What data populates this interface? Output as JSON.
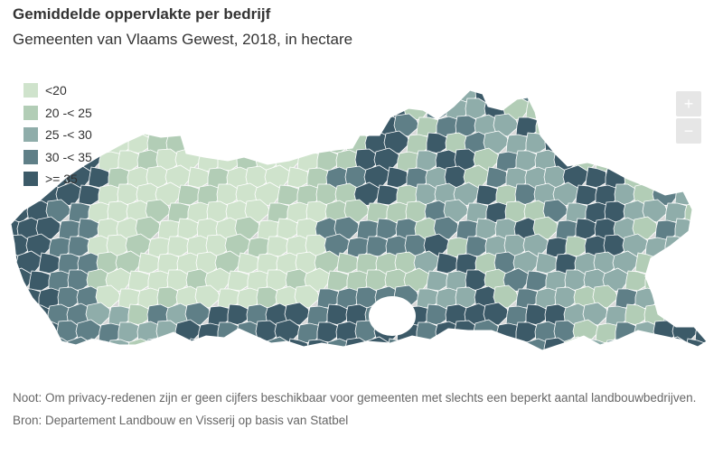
{
  "header": {
    "title": "Gemiddelde oppervlakte per bedrijf",
    "subtitle": "Gemeenten van Vlaams Gewest, 2018, in hectare"
  },
  "legend": {
    "items": [
      {
        "label": "<20",
        "color": "#cfe3cc"
      },
      {
        "label": "20 -< 25",
        "color": "#b2cdb6"
      },
      {
        "label": "25 -< 30",
        "color": "#8fadaa"
      },
      {
        "label": "30 -< 35",
        "color": "#5f7f87"
      },
      {
        "label": ">= 35",
        "color": "#3c5a68"
      }
    ]
  },
  "zoom": {
    "in_label": "+",
    "out_label": "−"
  },
  "map": {
    "colors": {
      "c1": "#cfe3cc",
      "c2": "#b2cdb6",
      "c3": "#8fadaa",
      "c4": "#5f7f87",
      "c5": "#3c5a68",
      "nodata": "#d9d9d9",
      "border": "#ffffff"
    }
  },
  "footer": {
    "note": "Noot: Om privacy-redenen zijn er geen cijfers beschikbaar voor gemeenten met slechts een beperkt aantal landbouwbedrijven.",
    "source": "Bron: Departement Landbouw en Visserij op basis van Statbel"
  }
}
